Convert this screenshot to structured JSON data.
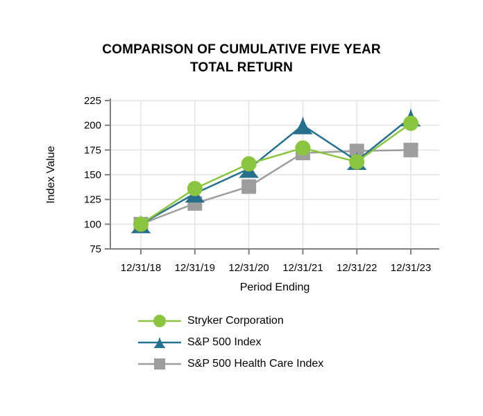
{
  "page": {
    "background": "#ffffff"
  },
  "chart_data": {
    "type": "line",
    "title_lines": [
      "COMPARISON OF CUMULATIVE FIVE YEAR",
      "TOTAL RETURN"
    ],
    "xlabel": "Period Ending",
    "ylabel": "Index Value",
    "categories": [
      "12/31/18",
      "12/31/19",
      "12/31/20",
      "12/31/21",
      "12/31/22",
      "12/31/23"
    ],
    "series": [
      {
        "name": "Stryker Corporation",
        "marker": "circle",
        "color": "#8BC53F",
        "values": [
          100,
          136,
          161,
          177,
          163,
          202
        ]
      },
      {
        "name": "S&P 500 Index",
        "marker": "triangle",
        "color": "#26708E",
        "values": [
          100,
          131,
          156,
          200,
          164,
          208
        ]
      },
      {
        "name": "S&P 500 Health Care Index",
        "marker": "square",
        "color": "#9D9D9D",
        "values": [
          100,
          121,
          138,
          172,
          174,
          175
        ]
      }
    ],
    "ylim": [
      75,
      225
    ],
    "ytick_step": 25,
    "yticks": [
      225,
      200,
      175,
      150,
      125,
      100,
      75
    ],
    "grid": true,
    "legend_position": "bottom-left",
    "axis_color": "#7F7F7F",
    "grid_color": "#E3E3E3",
    "text_color": "#000000"
  }
}
